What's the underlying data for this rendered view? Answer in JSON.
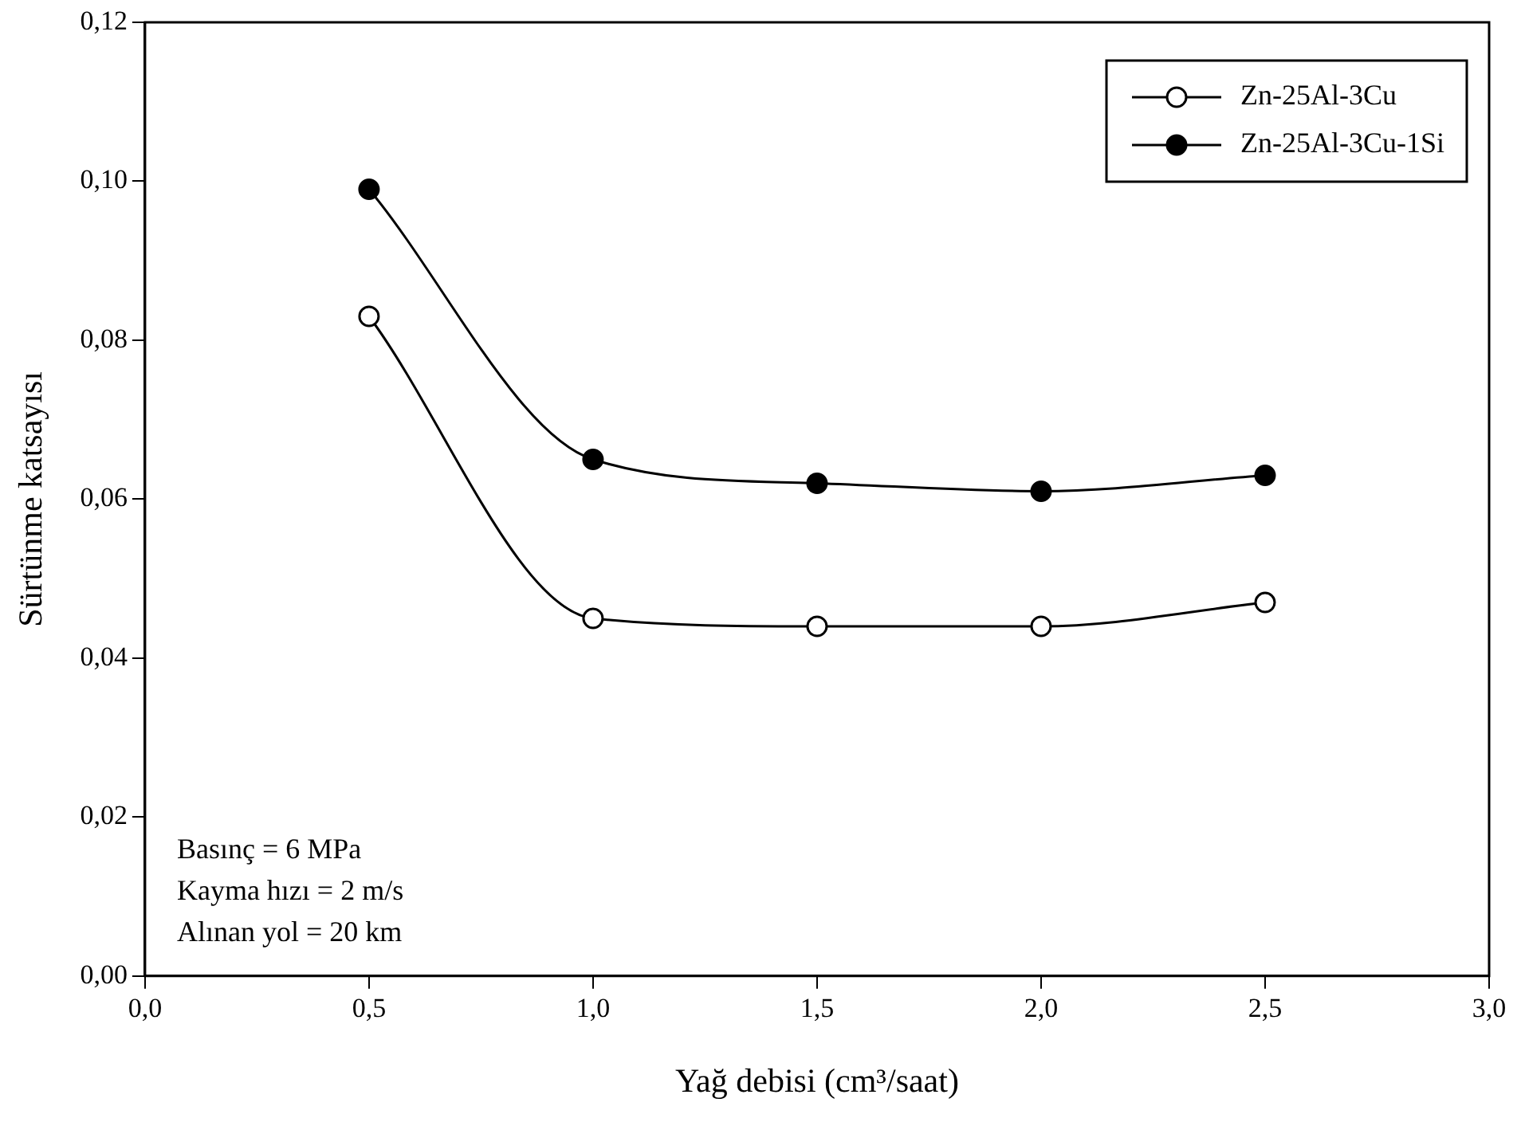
{
  "chart_data": {
    "type": "line",
    "xlabel": "Yağ debisi (cm³/saat)",
    "ylabel": "Sürtünme katsayısı",
    "x": [
      0.5,
      1.0,
      1.5,
      2.0,
      2.5
    ],
    "series": [
      {
        "name": "Zn-25Al-3Cu",
        "color": "#000000",
        "values": [
          0.083,
          0.045,
          0.044,
          0.044,
          0.047
        ]
      },
      {
        "name": "Zn-25Al-3Cu-1Si",
        "color": "#000000",
        "values": [
          0.099,
          0.065,
          0.062,
          0.061,
          0.063
        ]
      }
    ],
    "xlim": [
      0,
      3
    ],
    "xticks": [
      {
        "value": 0,
        "label": "0,0"
      },
      {
        "value": 0.5,
        "label": "0,5"
      },
      {
        "value": 1,
        "label": "1,0"
      },
      {
        "value": 1.5,
        "label": "1,5"
      },
      {
        "value": 2,
        "label": "2,0"
      },
      {
        "value": 2.5,
        "label": "2,5"
      },
      {
        "value": 3,
        "label": "3,0"
      }
    ],
    "ylim": [
      0,
      0.12
    ],
    "yticks": [
      {
        "value": 0,
        "label": "0,00"
      },
      {
        "value": 0.02,
        "label": "0,02"
      },
      {
        "value": 0.04,
        "label": "0,04"
      },
      {
        "value": 0.06,
        "label": "0,06"
      },
      {
        "value": 0.08,
        "label": "0,08"
      },
      {
        "value": 0.1,
        "label": "0,10"
      },
      {
        "value": 0.12,
        "label": "0,12"
      }
    ],
    "annotations": [
      "Basınç = 6 MPa",
      "Kayma hızı = 2 m/s",
      "Alınan yol = 20 km"
    ],
    "legend": "top right",
    "marker": "circle",
    "line_style": "solid",
    "grid": false
  }
}
